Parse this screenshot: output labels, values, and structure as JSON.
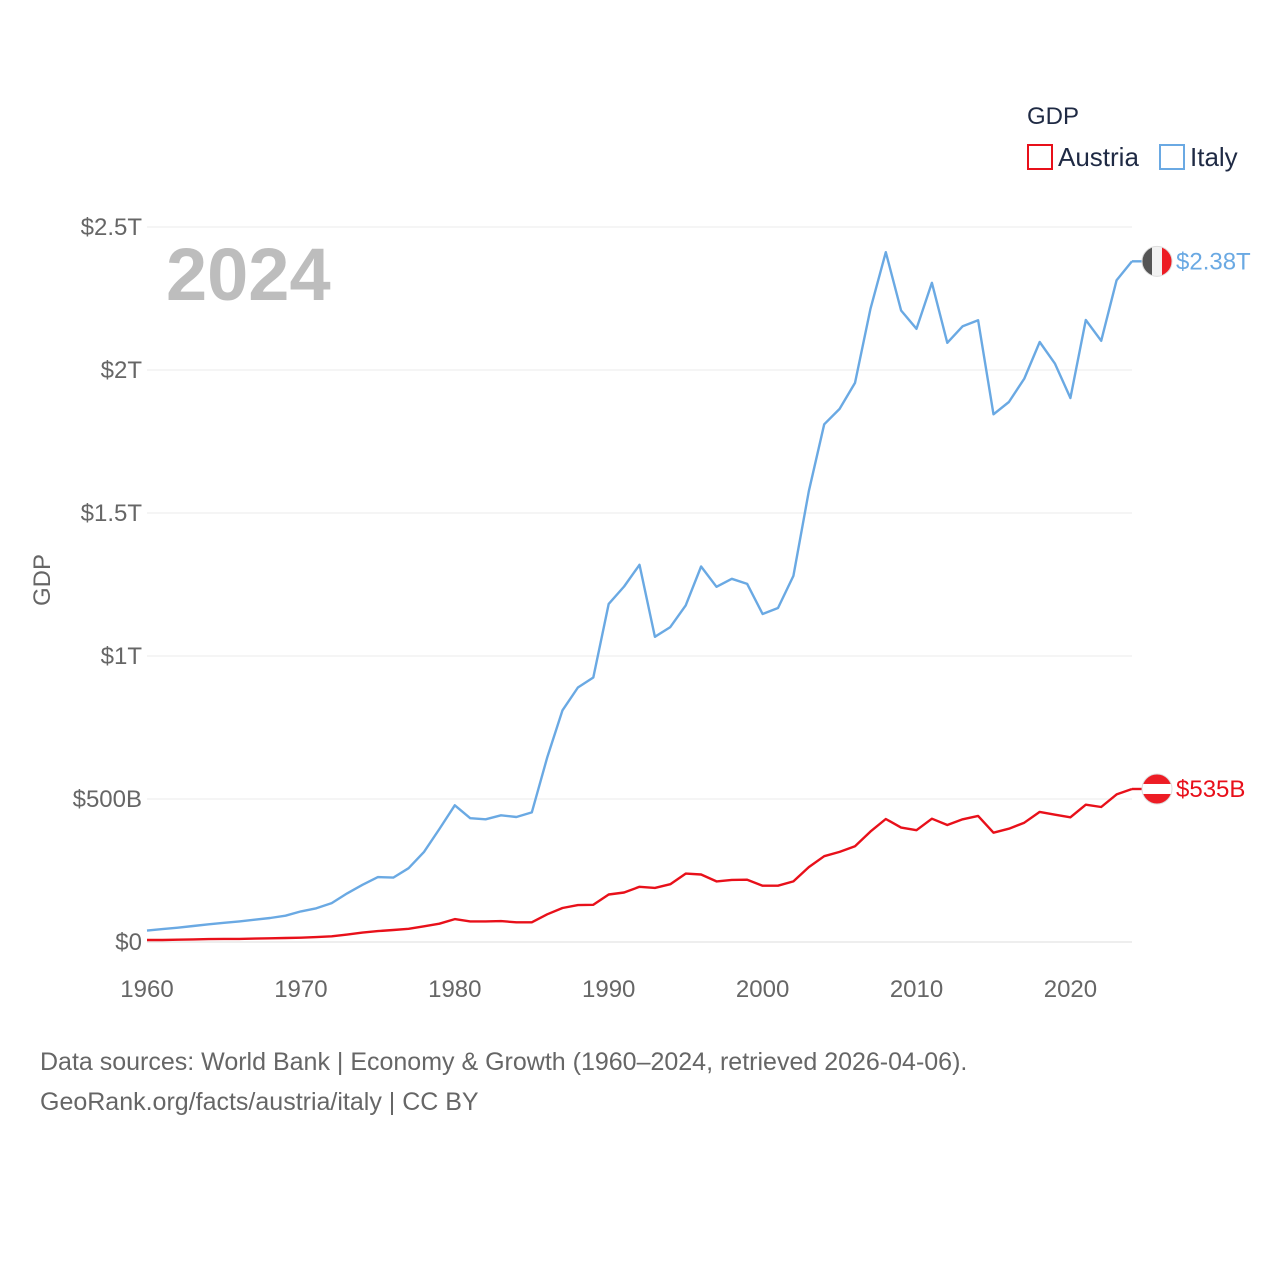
{
  "chart_data": {
    "type": "line",
    "year_label": "2024",
    "legend_title": "GDP",
    "ylabel": "GDP",
    "xlim": [
      1960,
      2024
    ],
    "ylim": [
      0,
      2500
    ],
    "unit": "billion USD",
    "x_ticks": [
      1960,
      1970,
      1980,
      1990,
      2000,
      2010,
      2020
    ],
    "x_tick_labels": [
      "1960",
      "1970",
      "1980",
      "1990",
      "2000",
      "2010",
      "2020"
    ],
    "y_ticks": [
      0,
      500,
      1000,
      1500,
      2000,
      2500
    ],
    "y_tick_labels": [
      "$0",
      "$500B",
      "$1T",
      "$1.5T",
      "$2T",
      "$2.5T"
    ],
    "x": [
      1960,
      1961,
      1962,
      1963,
      1964,
      1965,
      1966,
      1967,
      1968,
      1969,
      1970,
      1971,
      1972,
      1973,
      1974,
      1975,
      1976,
      1977,
      1978,
      1979,
      1980,
      1981,
      1982,
      1983,
      1984,
      1985,
      1986,
      1987,
      1988,
      1989,
      1990,
      1991,
      1992,
      1993,
      1994,
      1995,
      1996,
      1997,
      1998,
      1999,
      2000,
      2001,
      2002,
      2003,
      2004,
      2005,
      2006,
      2007,
      2008,
      2009,
      2010,
      2011,
      2012,
      2013,
      2014,
      2015,
      2016,
      2017,
      2018,
      2019,
      2020,
      2021,
      2022,
      2023,
      2024
    ],
    "series": [
      {
        "name": "Austria",
        "color": "#e8101a",
        "end_label": "$535B",
        "values": [
          7,
          7,
          8,
          9,
          10,
          11,
          11,
          12,
          13,
          14,
          15,
          17,
          20,
          26,
          33,
          38,
          42,
          46,
          55,
          64,
          80,
          72,
          72,
          73,
          69,
          69,
          97,
          119,
          129,
          130,
          166,
          173,
          193,
          189,
          202,
          239,
          236,
          212,
          217,
          218,
          197,
          197,
          212,
          262,
          300,
          315,
          335,
          386,
          430,
          400,
          391,
          431,
          409,
          429,
          441,
          382,
          396,
          417,
          455,
          445,
          436,
          480,
          472,
          516,
          535
        ]
      },
      {
        "name": "Italy",
        "color": "#6aa9e3",
        "end_label": "$2.38T",
        "values": [
          40,
          45,
          50,
          56,
          62,
          67,
          72,
          78,
          84,
          92,
          107,
          118,
          136,
          170,
          200,
          227,
          225,
          258,
          315,
          395,
          478,
          433,
          429,
          443,
          437,
          453,
          645,
          810,
          890,
          925,
          1182,
          1243,
          1319,
          1067,
          1101,
          1177,
          1313,
          1242,
          1270,
          1252,
          1147,
          1168,
          1280,
          1576,
          1810,
          1864,
          1955,
          2213,
          2412,
          2208,
          2144,
          2305,
          2095,
          2153,
          2174,
          1845,
          1888,
          1970,
          2098,
          2022,
          1902,
          2175,
          2102,
          2314,
          2380
        ]
      }
    ]
  },
  "footer": {
    "line1": "Data sources: World Bank | Economy & Growth (1960–2024, retrieved 2026-04-06).",
    "line2": "GeoRank.org/facts/austria/italy | CC BY"
  }
}
